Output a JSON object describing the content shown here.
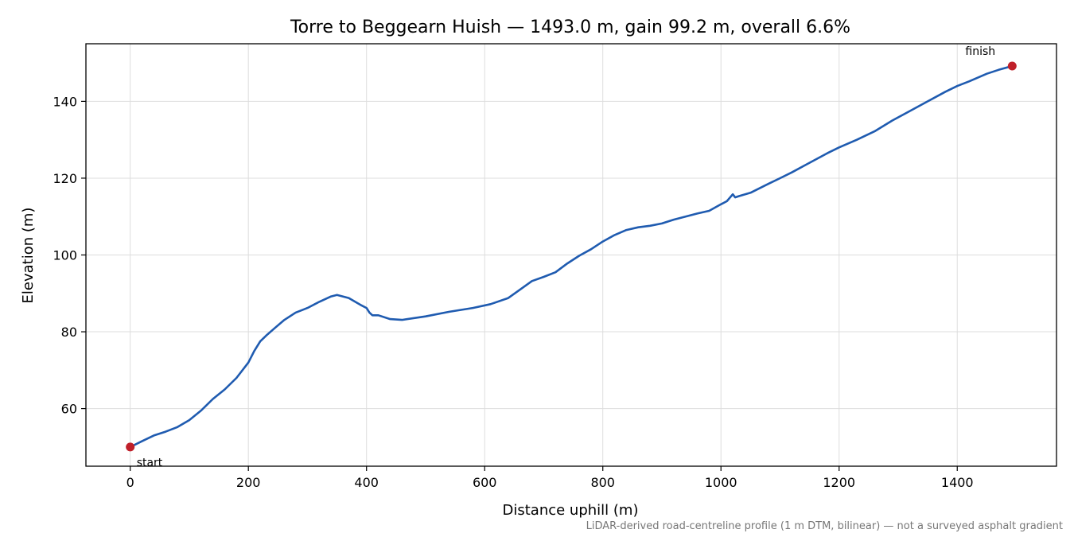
{
  "chart_data": {
    "type": "line",
    "title": "Torre to Beggearn Huish — 1493.0 m, gain 99.2 m, overall 6.6%",
    "xlabel": "Distance uphill (m)",
    "ylabel": "Elevation (m)",
    "xlim": [
      -75,
      1568
    ],
    "ylim": [
      45,
      155
    ],
    "xticks": [
      0,
      200,
      400,
      600,
      800,
      1000,
      1200,
      1400
    ],
    "yticks": [
      60,
      80,
      100,
      120,
      140
    ],
    "grid": true,
    "line_color": "#1f5bb0",
    "marker_color": "#c0202a",
    "series": [
      {
        "x": [
          0,
          20,
          40,
          60,
          80,
          100,
          120,
          140,
          160,
          180,
          200,
          210,
          220,
          230,
          245,
          260,
          280,
          300,
          320,
          340,
          350,
          370,
          390,
          400,
          405,
          410,
          420,
          440,
          460,
          500,
          540,
          580,
          610,
          640,
          660,
          680,
          700,
          720,
          740,
          760,
          780,
          800,
          820,
          840,
          860,
          880,
          900,
          920,
          940,
          960,
          980,
          1000,
          1010,
          1020,
          1024,
          1030,
          1050,
          1080,
          1100,
          1120,
          1150,
          1180,
          1200,
          1230,
          1260,
          1290,
          1320,
          1350,
          1380,
          1400,
          1420,
          1450,
          1470,
          1493
        ],
        "y": [
          50,
          51.5,
          53,
          54,
          55.2,
          57,
          59.5,
          62.5,
          65,
          68,
          72,
          75,
          77.5,
          79,
          81,
          83,
          85,
          86.2,
          87.8,
          89.2,
          89.6,
          88.8,
          87,
          86.2,
          85,
          84.3,
          84.3,
          83.3,
          83.1,
          84,
          85.2,
          86.2,
          87.2,
          88.8,
          91,
          93.2,
          94.3,
          95.5,
          97.8,
          99.8,
          101.5,
          103.5,
          105.2,
          106.5,
          107.2,
          107.6,
          108.2,
          109.2,
          110,
          110.8,
          111.5,
          113.2,
          114,
          115.8,
          115,
          115.3,
          116.2,
          118.5,
          120,
          121.5,
          124,
          126.5,
          128,
          130,
          132.2,
          135,
          137.5,
          140,
          142.5,
          144,
          145.2,
          147.2,
          148.2,
          149.2
        ]
      }
    ],
    "annotations": [
      {
        "text": "start",
        "x": 0,
        "y": 50
      },
      {
        "text": "finish",
        "x": 1493,
        "y": 149.2
      }
    ],
    "footnote": "LiDAR-derived road-centreline profile (1 m DTM, bilinear) — not a surveyed asphalt gradient"
  }
}
